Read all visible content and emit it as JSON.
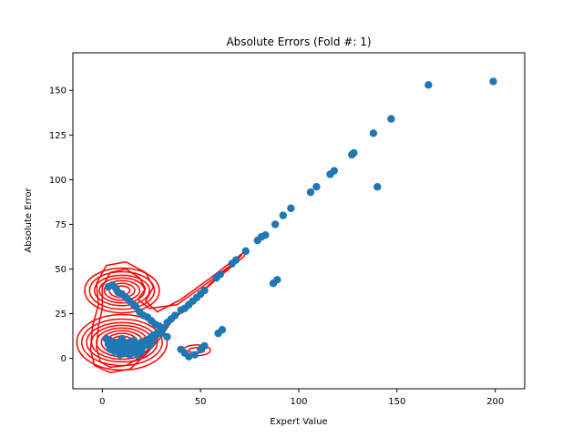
{
  "chart_data": {
    "type": "scatter",
    "title": "Absolute Errors (Fold #: 1)",
    "xlabel": "Expert Value",
    "ylabel": "Absolute Error",
    "xlim": [
      -15,
      215
    ],
    "ylim": [
      -17,
      171
    ],
    "xticks": [
      0,
      50,
      100,
      150,
      200
    ],
    "yticks": [
      0,
      25,
      50,
      75,
      100,
      125,
      150
    ],
    "grid": false,
    "point_color": "#1f77b4",
    "density_color": "#ff0000",
    "points": [
      [
        3,
        40
      ],
      [
        5,
        41
      ],
      [
        7,
        39
      ],
      [
        8,
        37
      ],
      [
        10,
        36
      ],
      [
        12,
        34
      ],
      [
        14,
        32
      ],
      [
        16,
        30
      ],
      [
        17,
        29
      ],
      [
        19,
        26
      ],
      [
        21,
        24
      ],
      [
        23,
        23
      ],
      [
        25,
        21
      ],
      [
        27,
        19
      ],
      [
        29,
        18
      ],
      [
        31,
        17
      ],
      [
        33,
        20
      ],
      [
        35,
        22
      ],
      [
        37,
        24
      ],
      [
        40,
        27
      ],
      [
        42,
        28
      ],
      [
        44,
        30
      ],
      [
        46,
        32
      ],
      [
        48,
        34
      ],
      [
        50,
        36
      ],
      [
        52,
        38
      ],
      [
        58,
        45
      ],
      [
        60,
        47
      ],
      [
        66,
        53
      ],
      [
        68,
        55
      ],
      [
        73,
        60
      ],
      [
        79,
        66
      ],
      [
        81,
        68
      ],
      [
        83,
        69
      ],
      [
        88,
        75
      ],
      [
        92,
        80
      ],
      [
        96,
        84
      ],
      [
        106,
        93
      ],
      [
        109,
        96
      ],
      [
        116,
        103
      ],
      [
        118,
        105
      ],
      [
        127,
        114
      ],
      [
        128,
        115
      ],
      [
        138,
        126
      ],
      [
        147,
        134
      ],
      [
        166,
        153
      ],
      [
        199,
        155
      ],
      [
        140,
        96
      ],
      [
        87,
        42
      ],
      [
        89,
        44
      ],
      [
        59,
        14
      ],
      [
        61,
        16
      ],
      [
        40,
        5
      ],
      [
        42,
        3
      ],
      [
        44,
        1
      ],
      [
        47,
        2
      ],
      [
        50,
        5
      ],
      [
        52,
        7
      ],
      [
        33,
        12
      ],
      [
        30,
        14
      ],
      [
        3,
        8
      ],
      [
        4,
        10
      ],
      [
        5,
        7
      ],
      [
        6,
        9
      ],
      [
        7,
        6
      ],
      [
        8,
        4
      ],
      [
        9,
        7
      ],
      [
        10,
        8
      ],
      [
        11,
        5
      ],
      [
        12,
        3
      ],
      [
        13,
        4
      ],
      [
        14,
        2
      ],
      [
        15,
        5
      ],
      [
        16,
        6
      ],
      [
        17,
        7
      ],
      [
        18,
        5
      ],
      [
        19,
        8
      ],
      [
        20,
        9
      ],
      [
        21,
        7
      ],
      [
        22,
        10
      ],
      [
        23,
        9
      ],
      [
        24,
        11
      ],
      [
        25,
        12
      ],
      [
        26,
        13
      ],
      [
        28,
        14
      ],
      [
        6,
        4
      ],
      [
        9,
        2
      ],
      [
        12,
        6
      ],
      [
        15,
        3
      ],
      [
        18,
        2
      ],
      [
        2,
        11
      ],
      [
        20,
        4
      ],
      [
        26,
        10
      ],
      [
        10,
        11
      ],
      [
        14,
        9
      ],
      [
        8,
        9
      ],
      [
        16,
        10
      ],
      [
        4,
        5
      ],
      [
        11,
        9
      ],
      [
        24,
        7
      ]
    ],
    "density_contours": [
      {
        "cx": 10,
        "cy": 38,
        "rx": [
          4,
          6.5,
          9,
          11.5,
          14,
          16.5,
          19
        ],
        "ry": [
          2.5,
          4,
          5.5,
          7,
          8.5,
          10.5,
          12.5
        ]
      },
      {
        "cx": 10,
        "cy": 9,
        "rx": [
          3,
          5.5,
          8,
          10.5,
          13,
          15.5,
          18,
          20.5,
          23
        ],
        "ry": [
          2,
          3.5,
          5,
          6.5,
          8,
          9.5,
          11,
          13,
          15.5
        ]
      },
      {
        "cx": 48,
        "cy": 4.5,
        "rx": [
          4,
          7
        ],
        "ry": [
          1.5,
          3
        ]
      }
    ],
    "outer_contours": [
      [
        [
          -6,
          5
        ],
        [
          -5,
          18
        ],
        [
          -2,
          30
        ],
        [
          -3,
          42
        ],
        [
          2,
          52
        ],
        [
          12,
          54
        ],
        [
          22,
          48
        ],
        [
          26,
          40
        ],
        [
          22,
          32
        ],
        [
          28,
          26
        ],
        [
          40,
          33
        ],
        [
          55,
          45
        ],
        [
          68,
          56
        ],
        [
          74,
          61
        ],
        [
          72,
          57
        ],
        [
          60,
          46
        ],
        [
          46,
          33
        ],
        [
          36,
          22
        ],
        [
          30,
          12
        ],
        [
          22,
          2
        ],
        [
          14,
          -6
        ],
        [
          4,
          -8
        ],
        [
          -4,
          -4
        ],
        [
          -6,
          5
        ]
      ],
      [
        [
          -3,
          6
        ],
        [
          -2,
          18
        ],
        [
          0,
          28
        ],
        [
          0,
          40
        ],
        [
          4,
          48
        ],
        [
          12,
          50
        ],
        [
          19,
          45
        ],
        [
          22,
          39
        ],
        [
          18,
          33
        ],
        [
          24,
          28
        ],
        [
          38,
          30
        ],
        [
          52,
          41
        ],
        [
          64,
          51
        ],
        [
          71,
          58
        ],
        [
          66,
          52
        ],
        [
          56,
          43
        ],
        [
          44,
          30
        ],
        [
          34,
          19
        ],
        [
          27,
          10
        ],
        [
          20,
          1
        ],
        [
          12,
          -4
        ],
        [
          4,
          -5
        ],
        [
          -1,
          -2
        ],
        [
          -3,
          6
        ]
      ]
    ]
  }
}
